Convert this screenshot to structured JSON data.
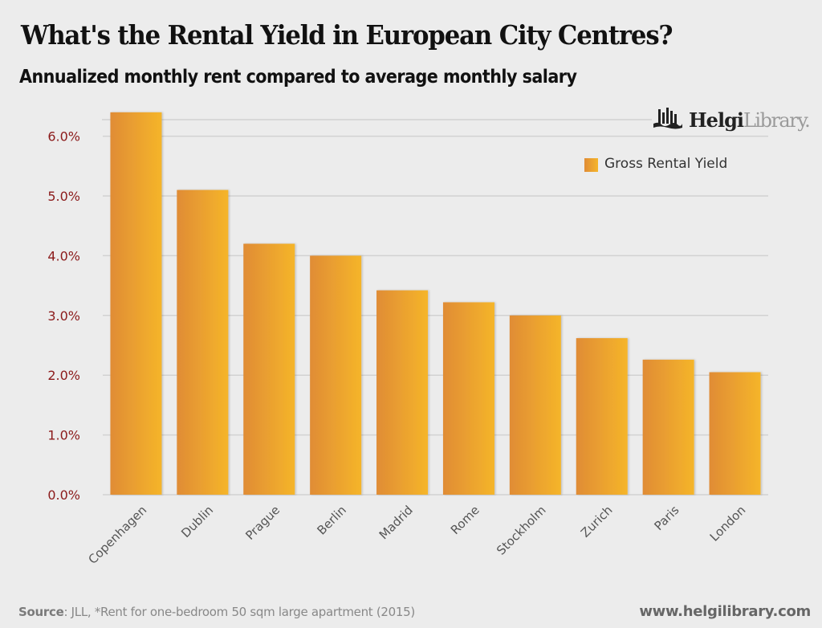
{
  "title": "What's the Rental Yield in European City Centres?",
  "subtitle": "Annualized monthly rent compared to average monthly salary",
  "logo": {
    "brand_bold": "Helgi",
    "brand_light": "Library.",
    "icon": "library-building-icon"
  },
  "footer": {
    "source_label": "Source",
    "source_text": ": JLL, *Rent for one-bedroom 50 sqm large apartment (2015)",
    "url": "www.helgilibrary.com"
  },
  "colors": {
    "bar_start": "#e08c35",
    "bar_end": "#f5b52a",
    "tick_label": "#8b1a1a",
    "grid": "#d2d2d2",
    "background": "#ececec"
  },
  "chart_data": {
    "type": "bar",
    "title": "What's the Rental Yield in European City Centres?",
    "subtitle": "Annualized monthly rent compared to average monthly salary",
    "xlabel": "",
    "ylabel": "",
    "categories": [
      "Copenhagen",
      "Dublin",
      "Prague",
      "Berlin",
      "Madrid",
      "Rome",
      "Stockholm",
      "Zurich",
      "Paris",
      "London"
    ],
    "series": [
      {
        "name": "Gross Rental Yield",
        "values": [
          6.4,
          5.1,
          4.2,
          4.0,
          3.42,
          3.22,
          3.0,
          2.62,
          2.26,
          2.05
        ]
      }
    ],
    "ylim": [
      0,
      6.5
    ],
    "yticks": [
      0,
      1,
      2,
      3,
      4,
      5,
      6
    ],
    "ytick_labels": [
      "0.0%",
      "1.0%",
      "2.0%",
      "3.0%",
      "4.0%",
      "5.0%",
      "6.0%"
    ],
    "grid": true,
    "legend": {
      "position": "top-right",
      "entries": [
        "Gross Rental Yield"
      ]
    }
  }
}
